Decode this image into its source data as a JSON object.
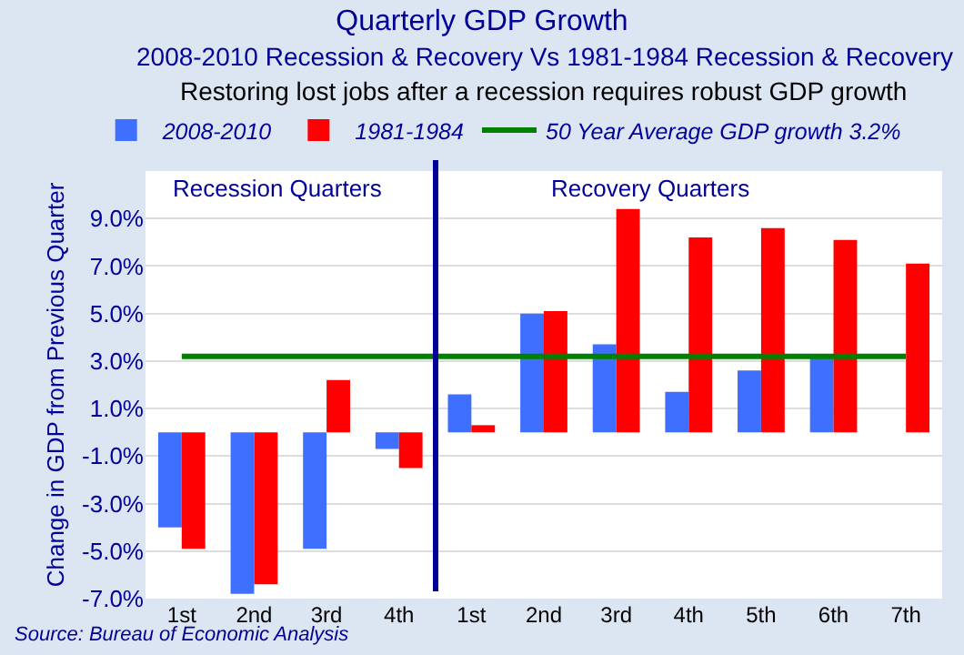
{
  "chart_data": {
    "type": "bar",
    "title": "Quarterly GDP Growth",
    "subtitle": "2008-2010 Recession & Recovery Vs 1981-1984 Recession & Recovery",
    "ylabel": "Change in GDP from Previous Quarter",
    "annotations": [
      "Restoring lost jobs after a recession requires robust GDP growth",
      "Recession Quarters",
      "Recovery Quarters",
      "Source: Bureau of Economic Analysis"
    ],
    "categories": [
      "1st",
      "2nd",
      "3rd",
      "4th",
      "1st",
      "2nd",
      "3rd",
      "4th",
      "5th",
      "6th",
      "7th"
    ],
    "series": [
      {
        "name": "2008-2010",
        "color": "#3f6fff",
        "values": [
          -4.0,
          -6.8,
          -4.9,
          -0.7,
          1.6,
          5.0,
          3.7,
          1.7,
          2.6,
          3.2,
          null
        ]
      },
      {
        "name": "1981-1984",
        "color": "#ff0000",
        "values": [
          -4.9,
          -6.4,
          2.2,
          -1.5,
          0.3,
          5.1,
          9.4,
          8.2,
          8.6,
          8.1,
          7.1
        ]
      },
      {
        "name": "50 Year Average GDP growth 3.2%",
        "type": "line",
        "color": "#008000",
        "values": [
          3.2,
          3.2,
          3.2,
          3.2,
          3.2,
          3.2,
          3.2,
          3.2,
          3.2,
          3.2,
          3.2
        ]
      }
    ],
    "ylim": [
      -7,
      11
    ],
    "yticks": [
      {
        "value": -7,
        "label": "-7.0%"
      },
      {
        "value": -5,
        "label": "-5.0%"
      },
      {
        "value": -3,
        "label": "-3.0%"
      },
      {
        "value": -1,
        "label": "-1.0%"
      },
      {
        "value": 1,
        "label": "1.0%"
      },
      {
        "value": 3,
        "label": "3.0%"
      },
      {
        "value": 5,
        "label": "5.0%"
      },
      {
        "value": 7,
        "label": "7.0%"
      },
      {
        "value": 9,
        "label": "9.0%"
      }
    ],
    "grid": "y",
    "legend": "top",
    "marker": "none"
  }
}
